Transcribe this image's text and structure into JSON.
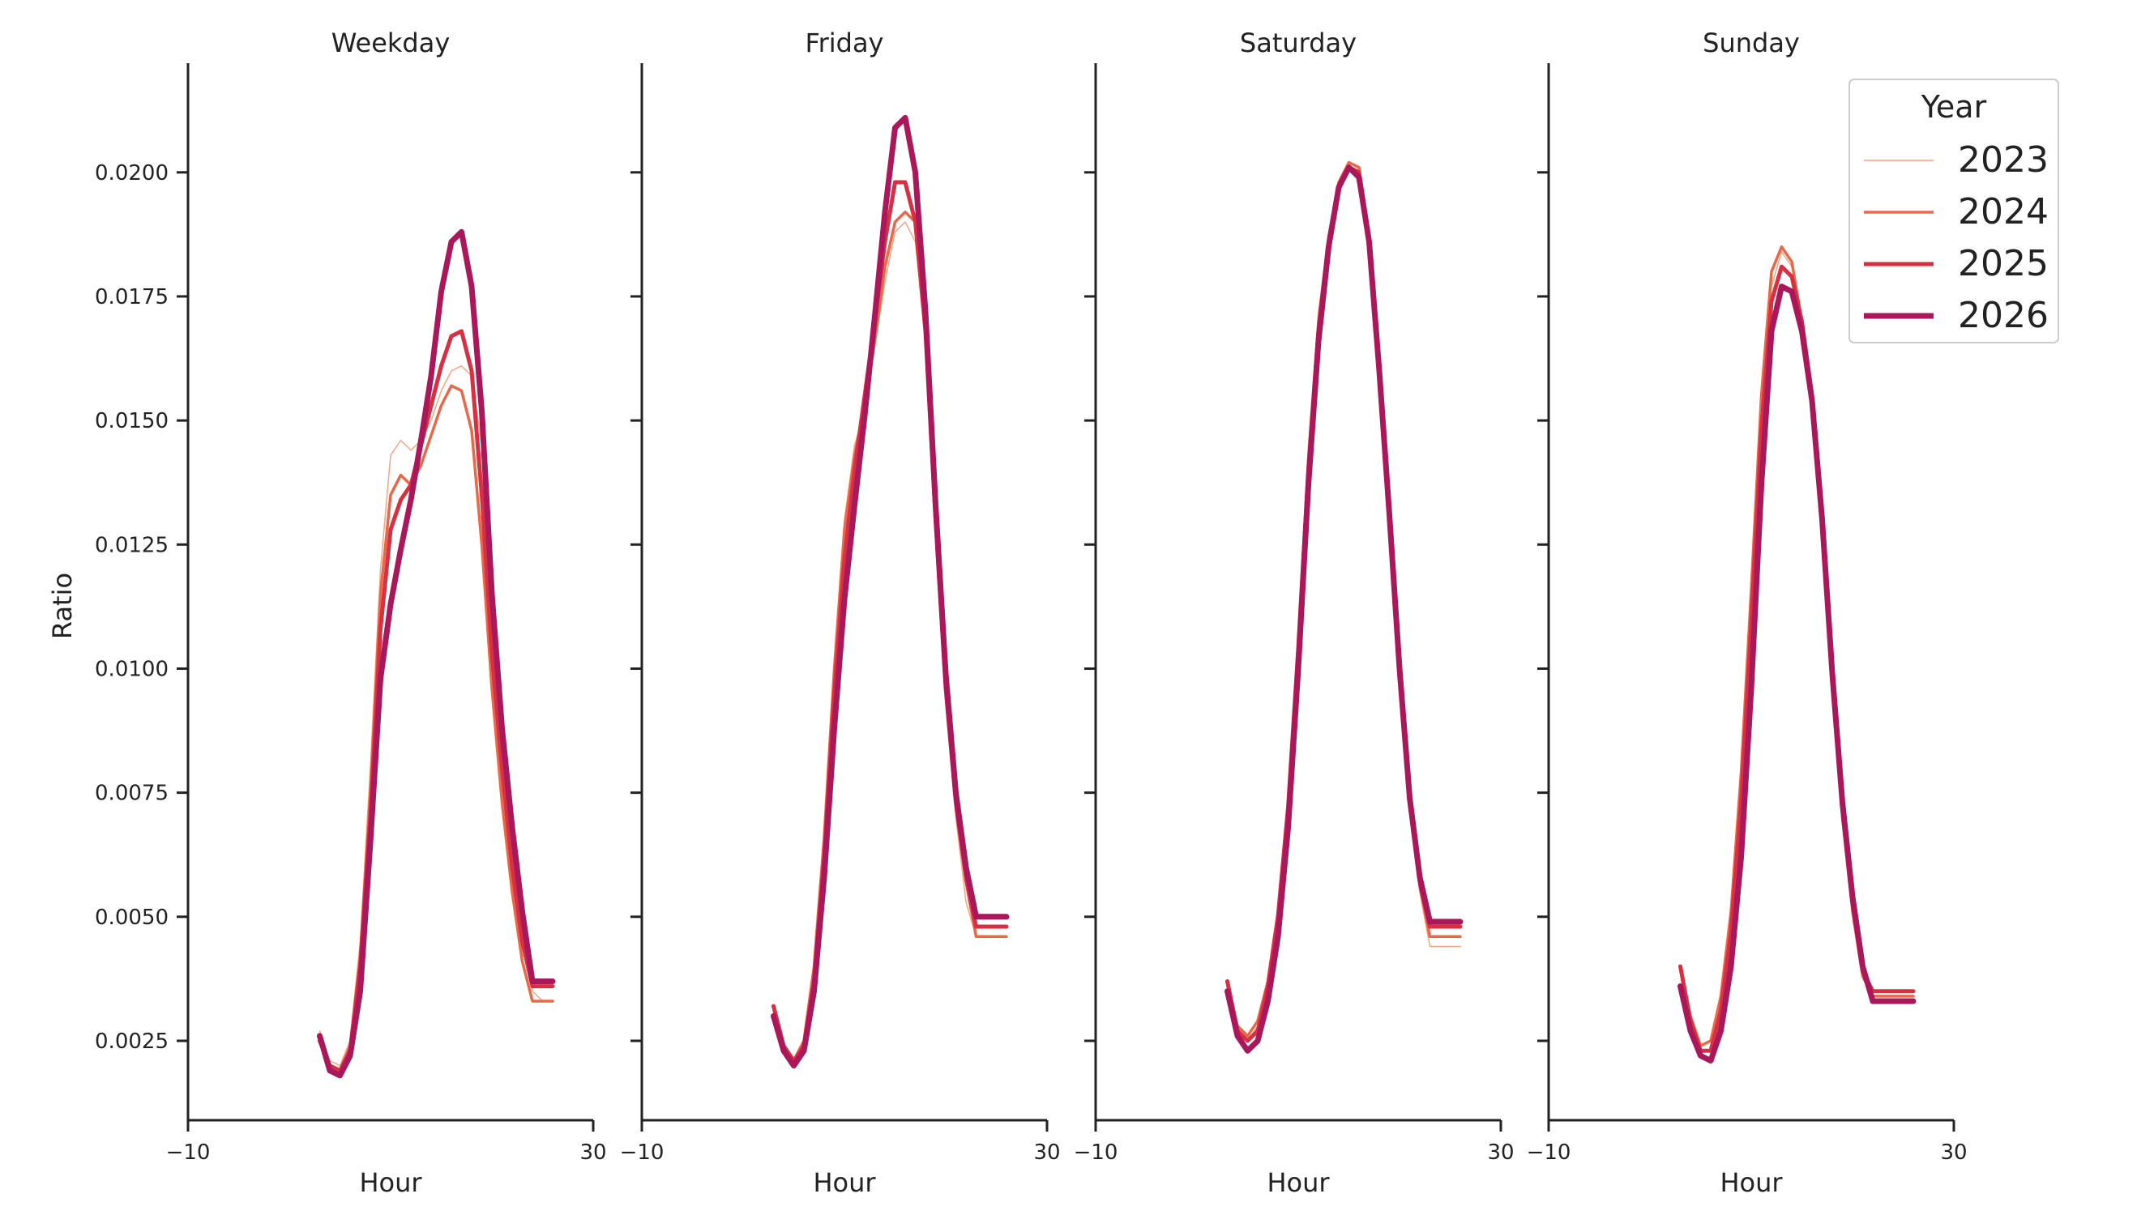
{
  "chart_data": {
    "type": "line",
    "ylabel": "Ratio",
    "xlabel": "Hour",
    "xlim": [
      -10,
      30
    ],
    "ylim": [
      0.0009,
      0.0222
    ],
    "x_ticks": [
      -10,
      30
    ],
    "x_tick_labels": [
      "−10",
      "30"
    ],
    "y_ticks": [
      0.0025,
      0.005,
      0.0075,
      0.01,
      0.0125,
      0.015,
      0.0175,
      0.02
    ],
    "y_tick_labels": [
      "0.0025",
      "0.0050",
      "0.0075",
      "0.0100",
      "0.0125",
      "0.0150",
      "0.0175",
      "0.0200"
    ],
    "grid": false,
    "legend": {
      "title": "Year",
      "position": "top-right",
      "entries": [
        {
          "label": "2023",
          "color": "#f4a582",
          "width": 1.5
        },
        {
          "label": "2024",
          "color": "#e8694a",
          "width": 3.5
        },
        {
          "label": "2025",
          "color": "#d63042",
          "width": 5
        },
        {
          "label": "2026",
          "color": "#a8185a",
          "width": 7
        }
      ]
    },
    "x": [
      0,
      1,
      2,
      3,
      4,
      5,
      6,
      7,
      8,
      9,
      10,
      11,
      12,
      13,
      14,
      15,
      16,
      17,
      18,
      19,
      20,
      21,
      22,
      23
    ],
    "panels": [
      {
        "title": "Weekday",
        "series": [
          {
            "name": "2023",
            "values": [
              0.0027,
              0.0021,
              0.002,
              0.0025,
              0.0045,
              0.008,
              0.012,
              0.0143,
              0.0146,
              0.0144,
              0.0146,
              0.015,
              0.0156,
              0.016,
              0.0161,
              0.0159,
              0.0145,
              0.0118,
              0.0088,
              0.0062,
              0.0045,
              0.0035,
              0.0033,
              0.0033
            ]
          },
          {
            "name": "2024",
            "values": [
              0.0026,
              0.002,
              0.0019,
              0.0024,
              0.0042,
              0.0075,
              0.0115,
              0.0135,
              0.0139,
              0.0137,
              0.0141,
              0.0147,
              0.0153,
              0.0157,
              0.0156,
              0.0148,
              0.0125,
              0.0096,
              0.0073,
              0.0055,
              0.0041,
              0.0033,
              0.0033,
              0.0033
            ]
          },
          {
            "name": "2025",
            "values": [
              0.0025,
              0.002,
              0.0019,
              0.0023,
              0.004,
              0.007,
              0.0108,
              0.0128,
              0.0134,
              0.0137,
              0.0145,
              0.0153,
              0.0161,
              0.0167,
              0.0168,
              0.016,
              0.0135,
              0.0103,
              0.008,
              0.006,
              0.0045,
              0.0036,
              0.0036,
              0.0036
            ]
          },
          {
            "name": "2026",
            "values": [
              0.0026,
              0.0019,
              0.0018,
              0.0022,
              0.0035,
              0.0065,
              0.0098,
              0.0113,
              0.0124,
              0.0134,
              0.0146,
              0.0159,
              0.0176,
              0.0186,
              0.0188,
              0.0177,
              0.0152,
              0.0115,
              0.0088,
              0.0068,
              0.0051,
              0.0037,
              0.0037,
              0.0037
            ]
          }
        ]
      },
      {
        "title": "Friday",
        "series": [
          {
            "name": "2023",
            "values": [
              0.003,
              0.0024,
              0.0021,
              0.0024,
              0.0038,
              0.0065,
              0.01,
              0.013,
              0.0145,
              0.0152,
              0.0165,
              0.0178,
              0.0188,
              0.019,
              0.0186,
              0.0168,
              0.013,
              0.0095,
              0.007,
              0.0053,
              0.0046,
              0.0046,
              0.0046,
              0.0046
            ]
          },
          {
            "name": "2024",
            "values": [
              0.0032,
              0.0024,
              0.0021,
              0.0025,
              0.004,
              0.0066,
              0.01,
              0.0128,
              0.0143,
              0.0153,
              0.0166,
              0.0181,
              0.019,
              0.0192,
              0.019,
              0.0173,
              0.0135,
              0.0098,
              0.0073,
              0.0057,
              0.0046,
              0.0046,
              0.0046,
              0.0046
            ]
          },
          {
            "name": "2025",
            "values": [
              0.0032,
              0.0024,
              0.0021,
              0.0024,
              0.0037,
              0.0062,
              0.0095,
              0.0122,
              0.014,
              0.0155,
              0.017,
              0.0186,
              0.0198,
              0.0198,
              0.019,
              0.0168,
              0.013,
              0.0096,
              0.0073,
              0.0058,
              0.0048,
              0.0048,
              0.0048,
              0.0048
            ]
          },
          {
            "name": "2026",
            "values": [
              0.003,
              0.0023,
              0.002,
              0.0023,
              0.0035,
              0.0058,
              0.0088,
              0.0114,
              0.0133,
              0.0151,
              0.0171,
              0.0192,
              0.0209,
              0.0211,
              0.02,
              0.0172,
              0.0133,
              0.0099,
              0.0075,
              0.006,
              0.005,
              0.005,
              0.005,
              0.005
            ]
          }
        ]
      },
      {
        "title": "Saturday",
        "series": [
          {
            "name": "2023",
            "values": [
              0.0036,
              0.0027,
              0.0025,
              0.0028,
              0.0037,
              0.0052,
              0.0075,
              0.0108,
              0.0145,
              0.0172,
              0.0187,
              0.0197,
              0.0201,
              0.02,
              0.0185,
              0.016,
              0.013,
              0.0098,
              0.0072,
              0.0055,
              0.0044,
              0.0044,
              0.0044,
              0.0044
            ]
          },
          {
            "name": "2024",
            "values": [
              0.0037,
              0.0028,
              0.0026,
              0.0029,
              0.0037,
              0.0051,
              0.0073,
              0.0105,
              0.0142,
              0.017,
              0.0187,
              0.0198,
              0.0202,
              0.0201,
              0.0186,
              0.016,
              0.013,
              0.0099,
              0.0073,
              0.0056,
              0.0046,
              0.0046,
              0.0046,
              0.0046
            ]
          },
          {
            "name": "2025",
            "values": [
              0.0037,
              0.0027,
              0.0025,
              0.0027,
              0.0036,
              0.005,
              0.0072,
              0.0104,
              0.014,
              0.0168,
              0.0186,
              0.0197,
              0.0201,
              0.02,
              0.0186,
              0.016,
              0.013,
              0.0099,
              0.0073,
              0.0057,
              0.0048,
              0.0048,
              0.0048,
              0.0048
            ]
          },
          {
            "name": "2026",
            "values": [
              0.0035,
              0.0026,
              0.0023,
              0.0025,
              0.0033,
              0.0046,
              0.0068,
              0.01,
              0.0137,
              0.0166,
              0.0185,
              0.0197,
              0.0201,
              0.0199,
              0.0186,
              0.016,
              0.0131,
              0.01,
              0.0074,
              0.0058,
              0.0049,
              0.0049,
              0.0049,
              0.0049
            ]
          }
        ]
      },
      {
        "title": "Sunday",
        "series": [
          {
            "name": "2023",
            "values": [
              0.004,
              0.0029,
              0.0024,
              0.0025,
              0.0033,
              0.005,
              0.0077,
              0.0113,
              0.015,
              0.0177,
              0.0184,
              0.0181,
              0.017,
              0.0155,
              0.0129,
              0.0097,
              0.0071,
              0.0052,
              0.0038,
              0.0034,
              0.0034,
              0.0034,
              0.0034,
              0.0034
            ]
          },
          {
            "name": "2024",
            "values": [
              0.004,
              0.003,
              0.0024,
              0.0025,
              0.0034,
              0.0051,
              0.0079,
              0.0116,
              0.0155,
              0.018,
              0.0185,
              0.0182,
              0.017,
              0.0154,
              0.0128,
              0.0096,
              0.007,
              0.0051,
              0.0038,
              0.0034,
              0.0034,
              0.0034,
              0.0034,
              0.0034
            ]
          },
          {
            "name": "2025",
            "values": [
              0.004,
              0.0029,
              0.0023,
              0.0023,
              0.0031,
              0.0047,
              0.0073,
              0.0109,
              0.0148,
              0.0174,
              0.0181,
              0.0179,
              0.017,
              0.0155,
              0.013,
              0.0098,
              0.0072,
              0.0053,
              0.0039,
              0.0035,
              0.0035,
              0.0035,
              0.0035,
              0.0035
            ]
          },
          {
            "name": "2026",
            "values": [
              0.0036,
              0.0027,
              0.0022,
              0.0021,
              0.0027,
              0.004,
              0.0062,
              0.0096,
              0.0137,
              0.0168,
              0.0177,
              0.0176,
              0.0168,
              0.0154,
              0.013,
              0.0099,
              0.0073,
              0.0054,
              0.004,
              0.0033,
              0.0033,
              0.0033,
              0.0033,
              0.0033
            ]
          }
        ]
      }
    ]
  }
}
